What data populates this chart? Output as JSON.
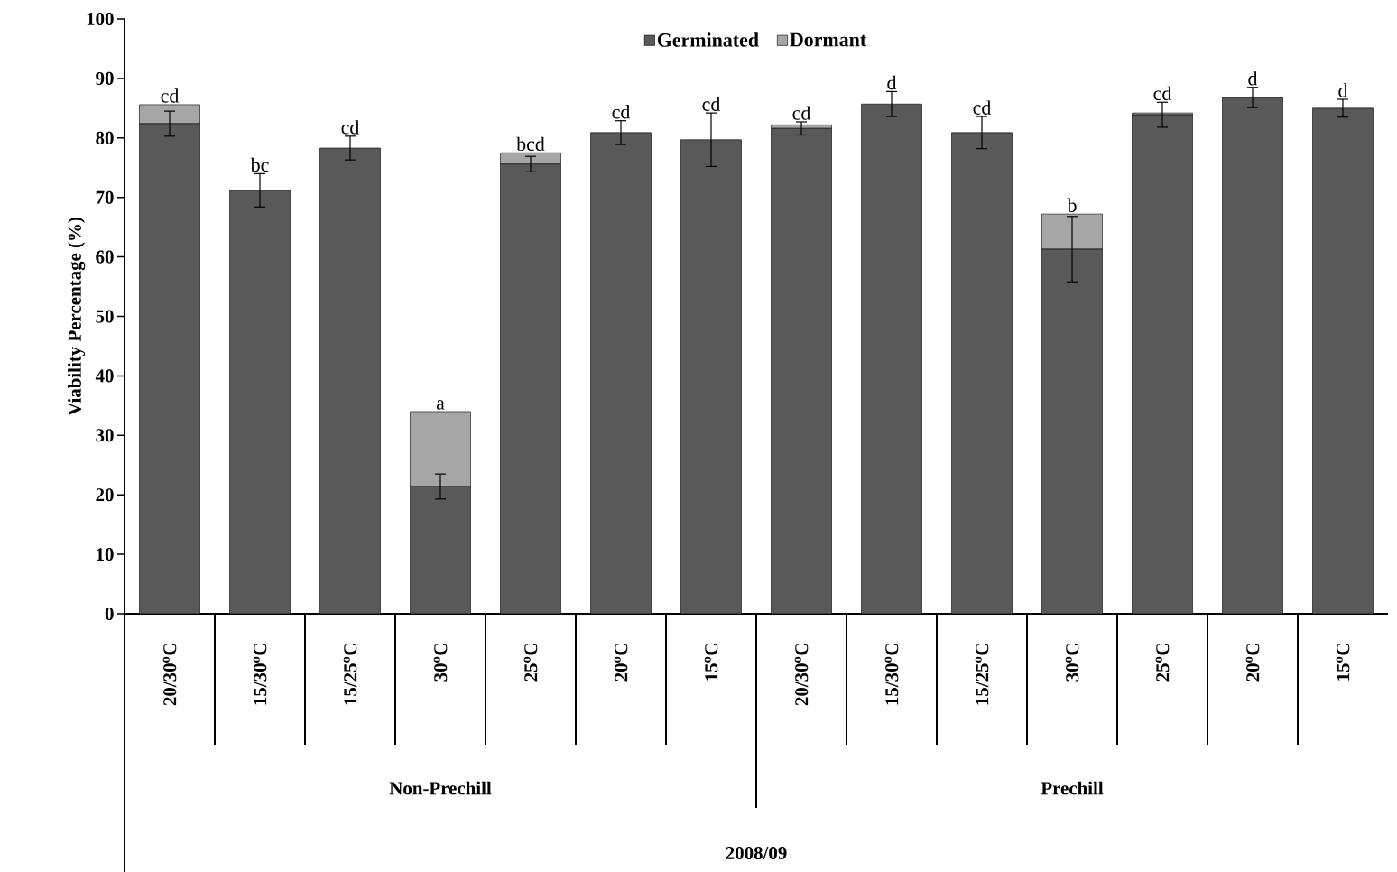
{
  "chart_data": {
    "type": "bar",
    "stacked": true,
    "ylabel": "Viability Percentage (%)",
    "categories": [
      "20/30$^{o}$C",
      "15/30$^{o}$C",
      "15/25$^{o}$C",
      "30$^{o}$C",
      "25$^{o}$C",
      "20$^{o}$C",
      "15$^{o}$C",
      "20/30$^{o}$C",
      "15/30$^{o}$C",
      "15/25$^{o}$C",
      "30$^{o}$C",
      "25$^{o}$C",
      "20$^{o}$C",
      "15$^{o}$C"
    ],
    "series": [
      {
        "name": "Germinated",
        "color": "#595959",
        "values": [
          82.4,
          71.2,
          78.3,
          21.4,
          75.6,
          80.9,
          79.7,
          81.6,
          85.7,
          80.9,
          61.3,
          83.9,
          86.8,
          85.0
        ],
        "errors": [
          2.1,
          2.8,
          2.0,
          2.1,
          1.3,
          2.0,
          4.5,
          1.1,
          2.1,
          2.7,
          5.5,
          2.1,
          1.7,
          1.5
        ]
      },
      {
        "name": "Dormant",
        "color": "#a6a6a6",
        "values": [
          3.2,
          0,
          0,
          12.6,
          1.9,
          0,
          0,
          0.6,
          0,
          0,
          5.9,
          0.3,
          0,
          null
        ]
      }
    ],
    "annotations": [
      "cd",
      "bc",
      "cd",
      "a",
      "bcd",
      "cd",
      "cd",
      "cd",
      "d",
      "cd",
      "b",
      "cd",
      "d",
      "d",
      "Non-Prechill",
      "Prechill",
      "2008/09"
    ],
    "ylim": [
      0,
      100
    ],
    "yticks": [
      0,
      10,
      20,
      30,
      40,
      50,
      60,
      70,
      80,
      90,
      100
    ],
    "legend": "top"
  }
}
